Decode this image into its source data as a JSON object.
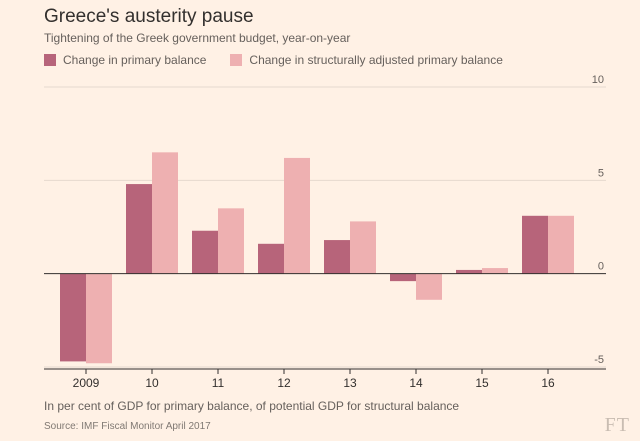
{
  "chart_data": {
    "type": "bar",
    "title": "Greece's austerity pause",
    "subtitle": "Tightening of the Greek government budget, year-on-year",
    "categories": [
      "2009",
      "10",
      "11",
      "12",
      "13",
      "14",
      "15",
      "16"
    ],
    "series": [
      {
        "name": "Change in primary balance",
        "color": "#b7647a",
        "values": [
          -4.7,
          4.8,
          2.3,
          1.6,
          1.8,
          -0.4,
          0.2,
          3.1
        ]
      },
      {
        "name": "Change in structurally adjusted primary balance",
        "color": "#eeb0b1",
        "values": [
          -4.8,
          6.5,
          3.5,
          6.2,
          2.8,
          -1.4,
          0.3,
          3.1
        ]
      }
    ],
    "ylim": [
      -5,
      10
    ],
    "yticks": [
      "10",
      "5",
      "0",
      "-5"
    ],
    "ytick_values": [
      10,
      5,
      0,
      -5
    ],
    "grid": true,
    "legend_position": "top-left",
    "footnote": "In per cent of GDP for primary balance, of potential GDP for structural balance",
    "source": "Source: IMF Fiscal Monitor April 2017"
  },
  "brand": {
    "logo_text": "FT"
  }
}
